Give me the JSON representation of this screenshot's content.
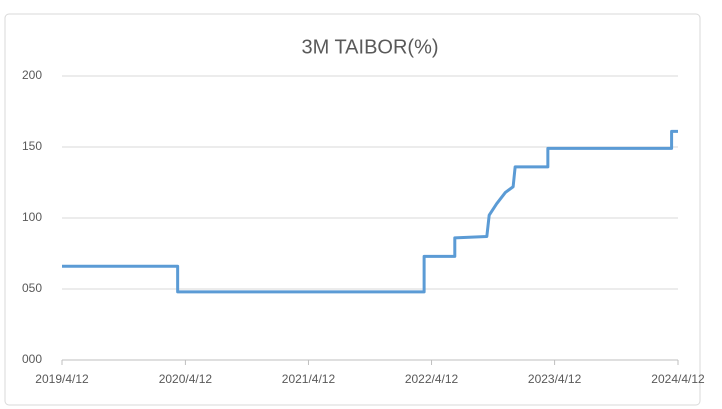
{
  "chart_data": {
    "type": "line",
    "title": "3M TAIBOR(%)",
    "x": [
      "2019/4/12",
      "2020/3/20",
      "2020/3/20",
      "2022/3/21",
      "2022/3/21",
      "2022/6/20",
      "2022/6/20",
      "2022/9/23",
      "2022/9/30",
      "2022/10/22",
      "2022/11/17",
      "2022/12/10",
      "2022/12/16",
      "2023/3/23",
      "2023/3/23",
      "2024/3/24",
      "2024/3/24",
      "2024/4/12"
    ],
    "values": [
      66,
      66,
      48,
      48,
      73,
      73,
      86,
      87,
      102,
      110,
      118,
      122,
      136,
      136,
      149,
      149,
      161,
      161
    ],
    "color": "#5b9bd5",
    "xlim": [
      "2019/4/12",
      "2024/4/12"
    ],
    "xticks": [
      "2019/4/12",
      "2020/4/12",
      "2021/4/12",
      "2022/4/12",
      "2023/4/12",
      "2024/4/12"
    ],
    "ylim": [
      0,
      200
    ],
    "yticks": [
      {
        "value": 0,
        "label": "000"
      },
      {
        "value": 50,
        "label": "050"
      },
      100,
      150,
      200
    ],
    "grid": true
  }
}
